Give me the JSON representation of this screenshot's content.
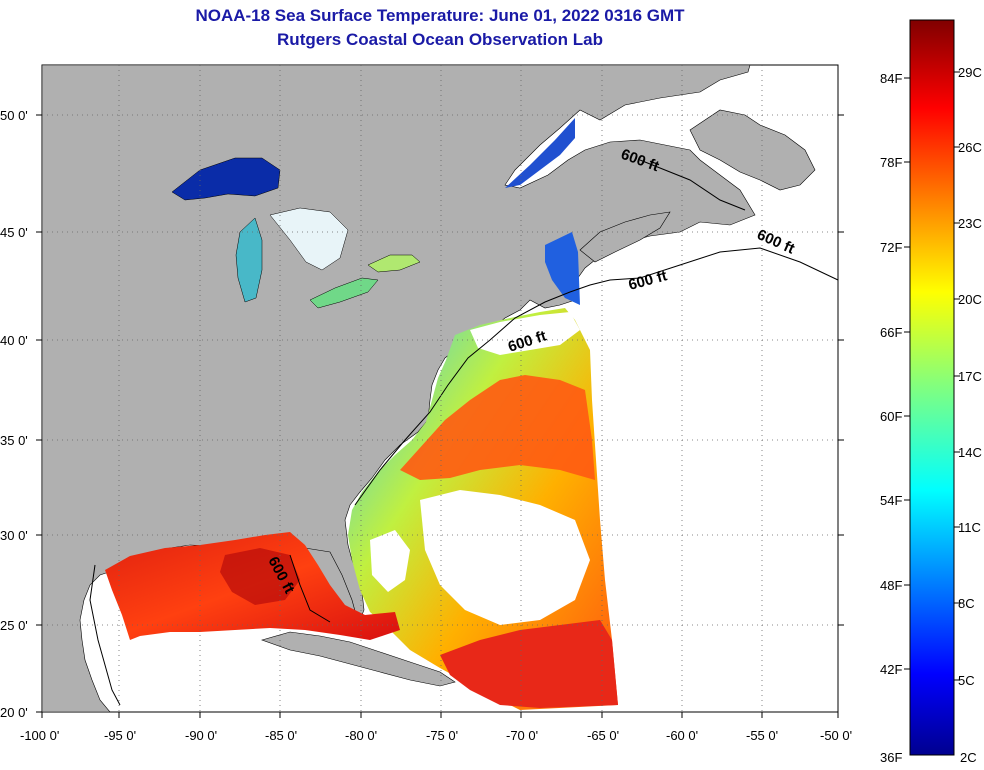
{
  "title": "NOAA-18 Sea Surface Temperature:  June 01, 2022 0316 GMT",
  "subtitle": "Rutgers Coastal Ocean Observation Lab",
  "map": {
    "lon_ticks": [
      "-100 0'",
      "-95 0'",
      "-90 0'",
      "-85 0'",
      "-80 0'",
      "-75 0'",
      "-70 0'",
      "-65 0'",
      "-60 0'",
      "-55 0'",
      "-50 0'"
    ],
    "lat_ticks": [
      "50 0'",
      "45 0'",
      "40 0'",
      "35 0'",
      "30 0'",
      "25 0'",
      "20 0'"
    ],
    "contour_labels": [
      "600 ft",
      "600 ft",
      "600 ft",
      "600 ft",
      "600 ft"
    ],
    "land_color": "#b0b0b0",
    "no_data_color": "#ffffff",
    "grid": "dotted"
  },
  "colorbar": {
    "fahrenheit_labels": [
      "84F",
      "78F",
      "72F",
      "66F",
      "60F",
      "54F",
      "48F",
      "42F",
      "36F"
    ],
    "celsius_labels": [
      "29C",
      "26C",
      "23C",
      "20C",
      "17C",
      "14C",
      "11C",
      "8C",
      "5C",
      "2C"
    ],
    "colormap": "jet"
  }
}
